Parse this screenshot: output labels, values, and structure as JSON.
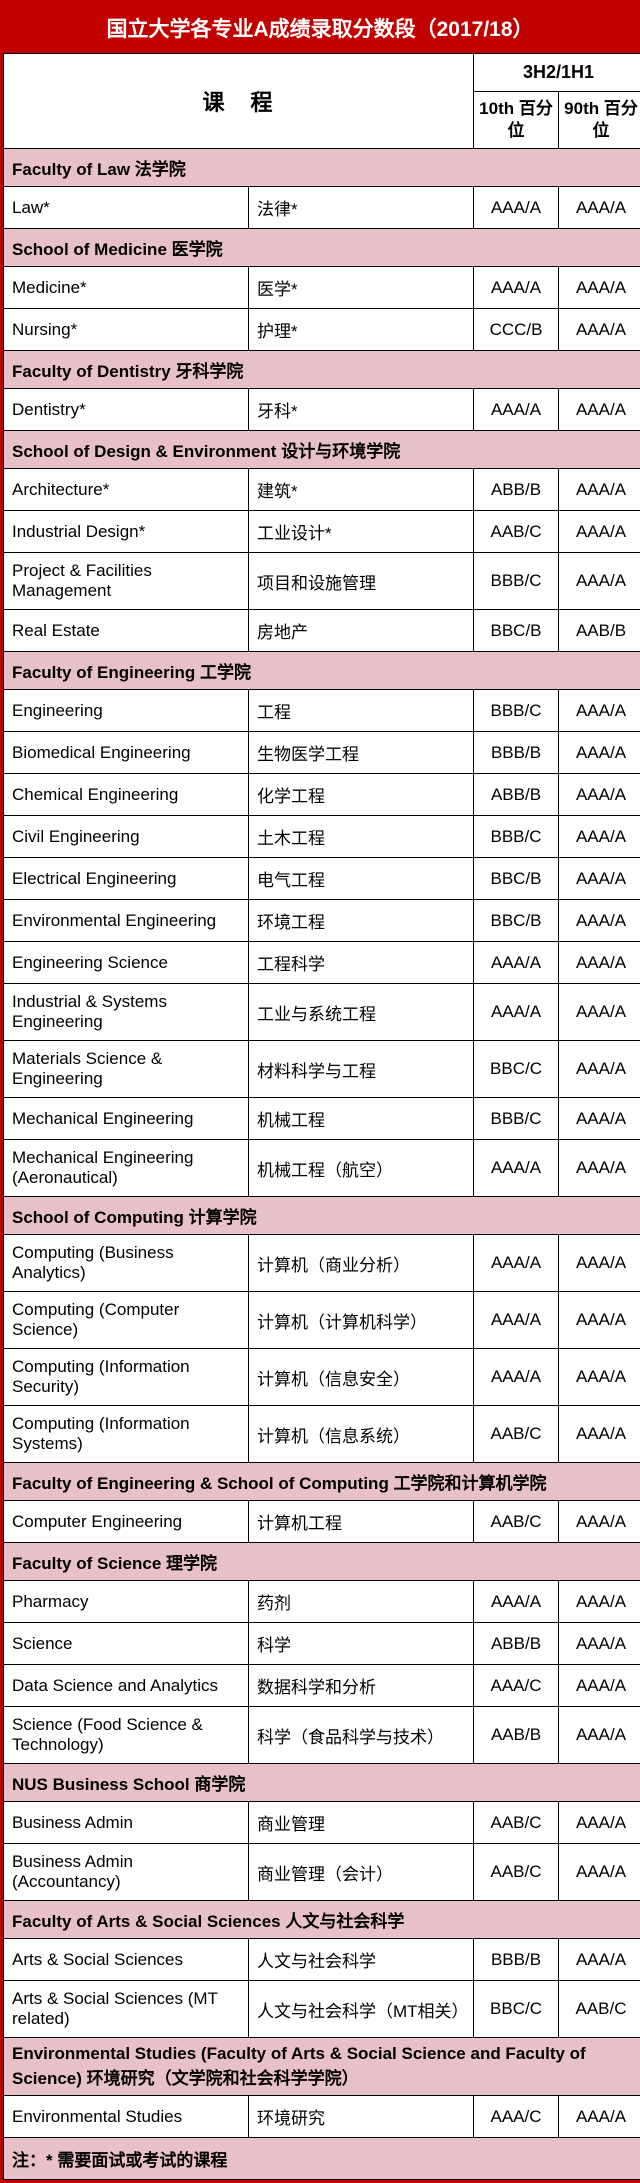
{
  "title": "国立大学各专业A成绩录取分数段（2017/18）",
  "headers": {
    "course": "课　程",
    "grade": "3H2/1H1",
    "pct10": "10th\n百分位",
    "pct90": "90th\n百分位"
  },
  "footnote": "注：* 需要面试或考试的课程",
  "colors": {
    "brand": "#c10000",
    "section_bg": "#e8c0c8",
    "border": "#000000"
  },
  "sections": [
    {
      "en": "Faculty of Law",
      "cn": "法学院",
      "rows": [
        {
          "en": "Law*",
          "cn": "法律*",
          "p10": "AAA/A",
          "p90": "AAA/A"
        }
      ]
    },
    {
      "en": "School of Medicine",
      "cn": "医学院",
      "rows": [
        {
          "en": "Medicine*",
          "cn": "医学*",
          "p10": "AAA/A",
          "p90": "AAA/A"
        },
        {
          "en": "Nursing*",
          "cn": "护理*",
          "p10": "CCC/B",
          "p90": "AAA/A"
        }
      ]
    },
    {
      "en": "Faculty of Dentistry",
      "cn": "牙科学院",
      "rows": [
        {
          "en": "Dentistry*",
          "cn": "牙科*",
          "p10": "AAA/A",
          "p90": "AAA/A"
        }
      ]
    },
    {
      "en": "School of Design & Environment",
      "cn": "设计与环境学院",
      "rows": [
        {
          "en": "Architecture*",
          "cn": "建筑*",
          "p10": "ABB/B",
          "p90": "AAA/A"
        },
        {
          "en": "Industrial Design*",
          "cn": "工业设计*",
          "p10": "AAB/C",
          "p90": "AAA/A"
        },
        {
          "en": "Project & Facilities Management",
          "cn": "项目和设施管理",
          "p10": "BBB/C",
          "p90": "AAA/A"
        },
        {
          "en": "Real Estate",
          "cn": "房地产",
          "p10": "BBC/B",
          "p90": "AAB/B"
        }
      ]
    },
    {
      "en": "Faculty of Engineering",
      "cn": "工学院",
      "rows": [
        {
          "en": "Engineering",
          "cn": "工程",
          "p10": "BBB/C",
          "p90": "AAA/A"
        },
        {
          "en": "Biomedical Engineering",
          "cn": "生物医学工程",
          "p10": "BBB/B",
          "p90": "AAA/A"
        },
        {
          "en": "Chemical Engineering",
          "cn": "化学工程",
          "p10": "ABB/B",
          "p90": "AAA/A"
        },
        {
          "en": "Civil Engineering",
          "cn": "土木工程",
          "p10": "BBB/C",
          "p90": "AAA/A"
        },
        {
          "en": "Electrical Engineering",
          "cn": "电气工程",
          "p10": "BBC/B",
          "p90": "AAA/A"
        },
        {
          "en": "Environmental Engineering",
          "cn": "环境工程",
          "p10": "BBC/B",
          "p90": "AAA/A"
        },
        {
          "en": "Engineering Science",
          "cn": "工程科学",
          "p10": "AAA/A",
          "p90": "AAA/A"
        },
        {
          "en": "Industrial & Systems Engineering",
          "cn": "工业与系统工程",
          "p10": "AAA/A",
          "p90": "AAA/A"
        },
        {
          "en": "Materials Science & Engineering",
          "cn": "材料科学与工程",
          "p10": "BBC/C",
          "p90": "AAA/A"
        },
        {
          "en": "Mechanical Engineering",
          "cn": "机械工程",
          "p10": "BBB/C",
          "p90": "AAA/A"
        },
        {
          "en": "Mechanical Engineering (Aeronautical)",
          "cn": "机械工程（航空）",
          "p10": "AAA/A",
          "p90": "AAA/A"
        }
      ]
    },
    {
      "en": "School of Computing",
      "cn": "计算学院",
      "rows": [
        {
          "en": "Computing (Business Analytics)",
          "cn": "计算机（商业分析）",
          "p10": "AAA/A",
          "p90": "AAA/A"
        },
        {
          "en": "Computing (Computer Science)",
          "cn": "计算机（计算机科学）",
          "p10": "AAA/A",
          "p90": "AAA/A"
        },
        {
          "en": "Computing (Information Security)",
          "cn": "计算机（信息安全）",
          "p10": "AAA/A",
          "p90": "AAA/A"
        },
        {
          "en": "Computing (Information Systems)",
          "cn": "计算机（信息系统）",
          "p10": "AAB/C",
          "p90": "AAA/A"
        }
      ]
    },
    {
      "en": "Faculty of Engineering & School of Computing",
      "cn": "工学院和计算机学院",
      "rows": [
        {
          "en": "Computer Engineering",
          "cn": "计算机工程",
          "p10": "AAB/C",
          "p90": "AAA/A"
        }
      ]
    },
    {
      "en": "Faculty of Science",
      "cn": "理学院",
      "rows": [
        {
          "en": "Pharmacy",
          "cn": "药剂",
          "p10": "AAA/A",
          "p90": "AAA/A"
        },
        {
          "en": "Science",
          "cn": "科学",
          "p10": "ABB/B",
          "p90": "AAA/A"
        },
        {
          "en": "Data Science and Analytics",
          "cn": "数据科学和分析",
          "p10": "AAA/C",
          "p90": "AAA/A"
        },
        {
          "en": "Science (Food Science & Technology)",
          "cn": "科学（食品科学与技术）",
          "p10": "AAB/B",
          "p90": "AAA/A"
        }
      ]
    },
    {
      "en": "NUS Business School",
      "cn": "商学院",
      "rows": [
        {
          "en": "Business Admin",
          "cn": "商业管理",
          "p10": "AAB/C",
          "p90": "AAA/A"
        },
        {
          "en": "Business Admin (Accountancy)",
          "cn": "商业管理（会计）",
          "p10": "AAB/C",
          "p90": "AAA/A"
        }
      ]
    },
    {
      "en": "Faculty of Arts & Social Sciences",
      "cn": "人文与社会科学",
      "rows": [
        {
          "en": "Arts & Social Sciences",
          "cn": "人文与社会科学",
          "p10": "BBB/B",
          "p90": "AAA/A"
        },
        {
          "en": "Arts & Social Sciences (MT related)",
          "cn": "人文与社会科学（MT相关）",
          "p10": "BBC/C",
          "p90": "AAB/C"
        }
      ]
    },
    {
      "en": "Environmental Studies (Faculty of Arts & Social Science and Faculty of Science)",
      "cn": "环境研究（文学院和社会科学学院）",
      "rows": [
        {
          "en": "Environmental Studies",
          "cn": "环境研究",
          "p10": "AAA/C",
          "p90": "AAA/A"
        }
      ]
    }
  ]
}
